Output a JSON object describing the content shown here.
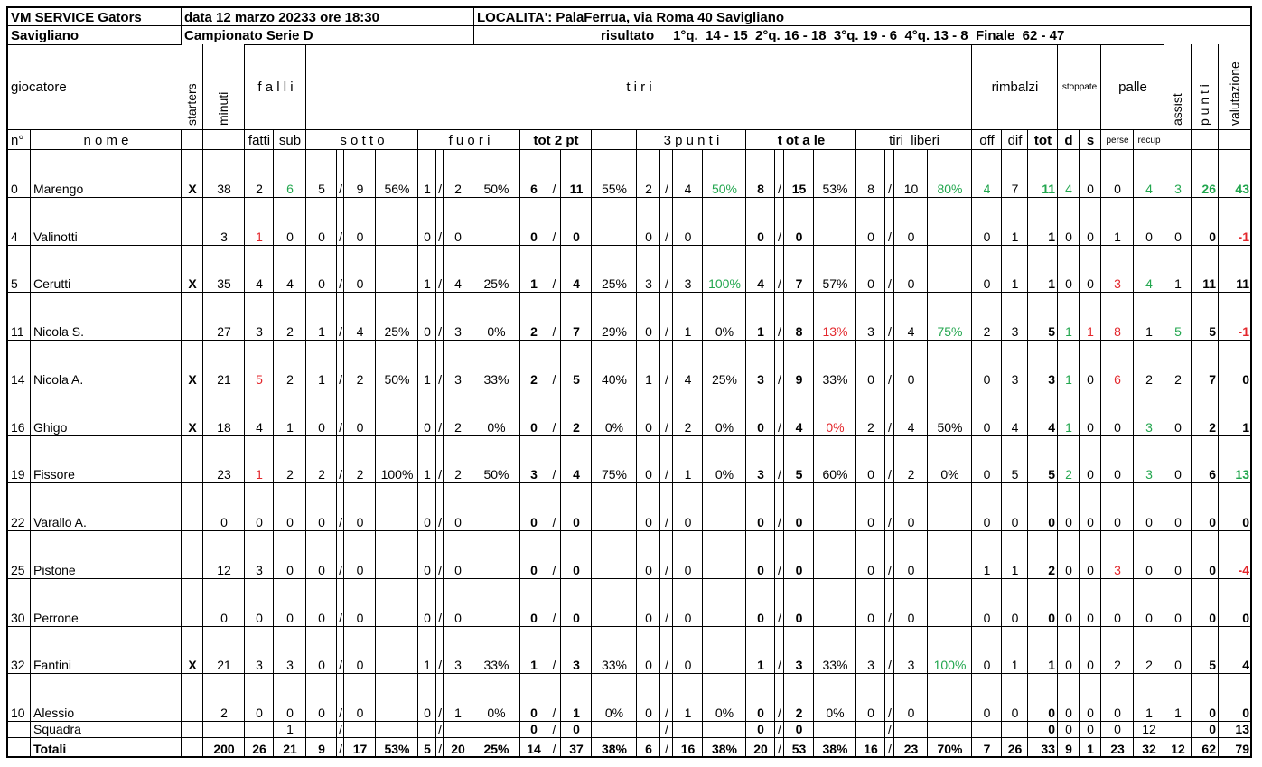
{
  "header": {
    "team": "VM SERVICE Gators",
    "date": "data 12 marzo 20233 ore 18:30",
    "location": "LOCALITA': PalaFerrua, via Roma 40 Savigliano",
    "city": "Savigliano",
    "league": "Campionato Serie D",
    "result": "risultato     1°q.  14 - 15  2°q. 16 - 18  3°q. 19 - 6  4°q. 13 - 8  Finale  62 - 47"
  },
  "columns": {
    "group": [
      "giocatore",
      "starters",
      "minuti",
      "f a l l i",
      "t i r i",
      "rimbalzi",
      "stoppate",
      "palle",
      "assist",
      "p u n t i",
      "valutazione"
    ],
    "sub": [
      "n°",
      "n o m e",
      "fatti",
      "sub",
      "s o t t o",
      "f u o r i",
      "tot 2 pt",
      "3 p u n t i",
      "t ot a le",
      "tiri  liberi",
      "off",
      "dif",
      "tot",
      "d",
      "s",
      "perse",
      "recup"
    ]
  },
  "separator": "/",
  "rows": [
    {
      "cells": [
        0,
        "Marengo",
        "X",
        38,
        2,
        6,
        5,
        9,
        "56%",
        1,
        2,
        "50%",
        6,
        11,
        "55%",
        2,
        4,
        "50%",
        8,
        15,
        "53%",
        8,
        10,
        "80%",
        4,
        7,
        11,
        4,
        0,
        0,
        4,
        3,
        26,
        43
      ],
      "colors": {
        "5": "#22a64e",
        "17": "#22a64e",
        "23": "#22a64e",
        "24": "#22a64e",
        "26": "#22a64e",
        "27": "#22a64e",
        "30": "#22a64e",
        "31": "#22a64e",
        "32": "#22a64e",
        "33": "#22a64e"
      }
    },
    {
      "cells": [
        4,
        "Valinotti",
        null,
        3,
        1,
        0,
        0,
        0,
        null,
        0,
        0,
        null,
        0,
        0,
        null,
        0,
        0,
        null,
        0,
        0,
        null,
        0,
        0,
        null,
        0,
        1,
        1,
        0,
        0,
        1,
        0,
        0,
        0,
        -1
      ],
      "colors": {
        "4": "#e3262b",
        "33": "#e3262b"
      }
    },
    {
      "cells": [
        5,
        "Cerutti",
        "X",
        35,
        4,
        4,
        0,
        0,
        null,
        1,
        4,
        "25%",
        1,
        4,
        "25%",
        3,
        3,
        "100%",
        4,
        7,
        "57%",
        0,
        0,
        null,
        0,
        1,
        1,
        0,
        0,
        3,
        4,
        1,
        11,
        11
      ],
      "colors": {
        "17": "#22a64e",
        "29": "#e3262b",
        "30": "#22a64e"
      }
    },
    {
      "cells": [
        11,
        "Nicola S.",
        null,
        27,
        3,
        2,
        1,
        4,
        "25%",
        0,
        3,
        "0%",
        2,
        7,
        "29%",
        0,
        1,
        "0%",
        1,
        8,
        "13%",
        3,
        4,
        "75%",
        2,
        3,
        5,
        1,
        1,
        8,
        1,
        5,
        5,
        -1
      ],
      "colors": {
        "20": "#e3262b",
        "23": "#22a64e",
        "27": "#22a64e",
        "28": "#e3262b",
        "29": "#e3262b",
        "31": "#22a64e",
        "33": "#e3262b"
      }
    },
    {
      "cells": [
        14,
        "Nicola A.",
        "X",
        21,
        5,
        2,
        1,
        2,
        "50%",
        1,
        3,
        "33%",
        2,
        5,
        "40%",
        1,
        4,
        "25%",
        3,
        9,
        "33%",
        0,
        0,
        null,
        0,
        3,
        3,
        1,
        0,
        6,
        2,
        2,
        7,
        0
      ],
      "colors": {
        "4": "#e3262b",
        "27": "#22a64e",
        "29": "#e3262b"
      }
    },
    {
      "cells": [
        16,
        "Ghigo",
        "X",
        18,
        4,
        1,
        0,
        0,
        null,
        0,
        2,
        "0%",
        0,
        2,
        "0%",
        0,
        2,
        "0%",
        0,
        4,
        "0%",
        2,
        4,
        "50%",
        0,
        4,
        4,
        1,
        0,
        0,
        3,
        0,
        2,
        1
      ],
      "colors": {
        "20": "#e3262b",
        "27": "#22a64e",
        "30": "#22a64e"
      }
    },
    {
      "cells": [
        19,
        "Fissore",
        null,
        23,
        1,
        2,
        2,
        2,
        "100%",
        1,
        2,
        "50%",
        3,
        4,
        "75%",
        0,
        1,
        "0%",
        3,
        5,
        "60%",
        0,
        2,
        "0%",
        0,
        5,
        5,
        2,
        0,
        0,
        3,
        0,
        6,
        13
      ],
      "colors": {
        "4": "#e3262b",
        "27": "#22a64e",
        "30": "#22a64e",
        "33": "#22a64e"
      }
    },
    {
      "cells": [
        22,
        "Varallo A.",
        null,
        0,
        0,
        0,
        0,
        0,
        null,
        0,
        0,
        null,
        0,
        0,
        null,
        0,
        0,
        null,
        0,
        0,
        null,
        0,
        0,
        null,
        0,
        0,
        0,
        0,
        0,
        0,
        0,
        0,
        0,
        0
      ],
      "colors": {}
    },
    {
      "cells": [
        25,
        "Pistone",
        null,
        12,
        3,
        0,
        0,
        0,
        null,
        0,
        0,
        null,
        0,
        0,
        null,
        0,
        0,
        null,
        0,
        0,
        null,
        0,
        0,
        null,
        1,
        1,
        2,
        0,
        0,
        3,
        0,
        0,
        0,
        -4
      ],
      "colors": {
        "29": "#e3262b",
        "33": "#e3262b"
      }
    },
    {
      "cells": [
        30,
        "Perrone",
        null,
        0,
        0,
        0,
        0,
        0,
        null,
        0,
        0,
        null,
        0,
        0,
        null,
        0,
        0,
        null,
        0,
        0,
        null,
        0,
        0,
        null,
        0,
        0,
        0,
        0,
        0,
        0,
        0,
        0,
        0,
        0
      ],
      "colors": {}
    },
    {
      "cells": [
        32,
        "Fantini",
        "X",
        21,
        3,
        3,
        0,
        0,
        null,
        1,
        3,
        "33%",
        1,
        3,
        "33%",
        0,
        0,
        null,
        1,
        3,
        "33%",
        3,
        3,
        "100%",
        0,
        1,
        1,
        0,
        0,
        2,
        2,
        0,
        5,
        4
      ],
      "colors": {
        "23": "#22a64e"
      }
    },
    {
      "cells": [
        10,
        "Alessio",
        null,
        2,
        0,
        0,
        0,
        0,
        null,
        0,
        1,
        "0%",
        0,
        1,
        "0%",
        0,
        1,
        "0%",
        0,
        2,
        "0%",
        0,
        0,
        null,
        0,
        0,
        0,
        0,
        0,
        0,
        1,
        1,
        0,
        0
      ],
      "colors": {}
    },
    {
      "cells": [
        null,
        "Squadra",
        null,
        null,
        null,
        1,
        null,
        null,
        null,
        null,
        null,
        null,
        0,
        0,
        null,
        null,
        null,
        null,
        0,
        0,
        null,
        null,
        null,
        null,
        null,
        null,
        0,
        0,
        0,
        0,
        12,
        null,
        0,
        13
      ],
      "colors": {}
    },
    {
      "cells": [
        null,
        "Totali",
        null,
        200,
        26,
        21,
        9,
        17,
        "53%",
        5,
        20,
        "25%",
        14,
        37,
        "38%",
        6,
        16,
        "38%",
        20,
        53,
        "38%",
        16,
        23,
        "70%",
        7,
        26,
        33,
        9,
        1,
        23,
        32,
        12,
        62,
        79
      ],
      "colors": {}
    }
  ]
}
